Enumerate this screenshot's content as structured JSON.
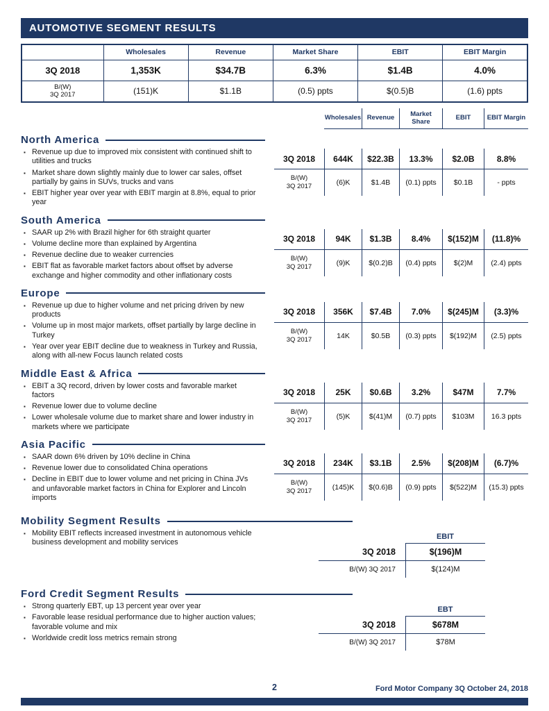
{
  "colors": {
    "navy": "#1f3864",
    "text": "#1a1a1a",
    "background": "#ffffff"
  },
  "header": {
    "title": "AUTOMOTIVE SEGMENT RESULTS"
  },
  "summary_table": {
    "columns": [
      "Wholesales",
      "Revenue",
      "Market Share",
      "EBIT",
      "EBIT Margin"
    ],
    "rows": [
      {
        "label": "3Q 2018",
        "values": [
          "1,353K",
          "$34.7B",
          "6.3%",
          "$1.4B",
          "4.0%"
        ]
      },
      {
        "label_lines": [
          "B/(W)",
          "3Q 2017"
        ],
        "values": [
          "(151)K",
          "$1.1B",
          "(0.5) ppts",
          "$(0.5)B",
          "(1.6) ppts"
        ]
      }
    ]
  },
  "region_columns": [
    "Wholesales",
    "Revenue",
    "Market Share",
    "EBIT",
    "EBIT Margin"
  ],
  "sections": [
    {
      "title": "North America",
      "bullets": [
        "Revenue up due to improved mix consistent with continued shift to utilities and trucks",
        "Market share down slightly mainly due to lower car sales, offset partially by gains in SUVs, trucks and vans",
        "EBIT higher year over year with EBIT margin at 8.8%, equal to prior year"
      ],
      "rows": [
        {
          "bold": true,
          "label_lines": [
            "3Q 2018"
          ],
          "values": [
            "644K",
            "$22.3B",
            "13.3%",
            "$2.0B",
            "8.8%"
          ]
        },
        {
          "bold": false,
          "label_lines": [
            "B/(W)",
            "3Q 2017"
          ],
          "values": [
            "(6)K",
            "$1.4B",
            "(0.1) ppts",
            "$0.1B",
            "- ppts"
          ]
        }
      ]
    },
    {
      "title": "South America",
      "bullets": [
        "SAAR up 2% with Brazil higher for 6th straight quarter",
        "Volume decline more than explained by Argentina",
        "Revenue decline due to weaker currencies",
        "EBIT flat as favorable market factors about offset by adverse exchange and higher commodity and other inflationary costs"
      ],
      "rows": [
        {
          "bold": true,
          "label_lines": [
            "3Q 2018"
          ],
          "values": [
            "94K",
            "$1.3B",
            "8.4%",
            "$(152)M",
            "(11.8)%"
          ]
        },
        {
          "bold": false,
          "label_lines": [
            "B/(W)",
            "3Q 2017"
          ],
          "values": [
            "(9)K",
            "$(0.2)B",
            "(0.4) ppts",
            "$(2)M",
            "(2.4) ppts"
          ]
        }
      ]
    },
    {
      "title": "Europe",
      "bullets": [
        "Revenue up due to higher volume and net pricing driven by new products",
        "Volume up in most major markets, offset partially by large decline in Turkey",
        "Year over year EBIT decline due to weakness in Turkey and Russia, along with all-new Focus launch related costs"
      ],
      "rows": [
        {
          "bold": true,
          "label_lines": [
            "3Q 2018"
          ],
          "values": [
            "356K",
            "$7.4B",
            "7.0%",
            "$(245)M",
            "(3.3)%"
          ]
        },
        {
          "bold": false,
          "label_lines": [
            "B/(W)",
            "3Q 2017"
          ],
          "values": [
            "14K",
            "$0.5B",
            "(0.3) ppts",
            "$(192)M",
            "(2.5) ppts"
          ]
        }
      ]
    },
    {
      "title": "Middle East & Africa",
      "bullets": [
        "EBIT a 3Q record, driven by lower costs and favorable market factors",
        "Revenue lower due to volume decline",
        "Lower wholesale volume due to market share and lower industry in markets where we participate"
      ],
      "rows": [
        {
          "bold": true,
          "label_lines": [
            "3Q 2018"
          ],
          "values": [
            "25K",
            "$0.6B",
            "3.2%",
            "$47M",
            "7.7%"
          ]
        },
        {
          "bold": false,
          "label_lines": [
            "B/(W)",
            "3Q 2017"
          ],
          "values": [
            "(5)K",
            "$(41)M",
            "(0.7) ppts",
            "$103M",
            "16.3 ppts"
          ]
        }
      ]
    },
    {
      "title": "Asia Pacific",
      "bullets": [
        "SAAR down 6% driven by 10% decline in China",
        "Revenue lower due to consolidated China operations",
        "Decline in EBIT due to lower volume and net pricing in China JVs and unfavorable market factors in China for Explorer and Lincoln imports"
      ],
      "rows": [
        {
          "bold": true,
          "label_lines": [
            "3Q 2018"
          ],
          "values": [
            "234K",
            "$3.1B",
            "2.5%",
            "$(208)M",
            "(6.7)%"
          ]
        },
        {
          "bold": false,
          "label_lines": [
            "B/(W)",
            "3Q 2017"
          ],
          "values": [
            "(145)K",
            "$(0.6)B",
            "(0.9) ppts",
            "$(522)M",
            "(15.3) ppts"
          ]
        }
      ]
    },
    {
      "title": "Mobility Segment Results",
      "type": "single",
      "value_header": "EBIT",
      "bullets": [
        "Mobility EBIT reflects increased investment in autonomous vehicle business development and mobility services"
      ],
      "rows": [
        {
          "bold": true,
          "label": "3Q 2018",
          "value": "$(196)M"
        },
        {
          "bold": false,
          "label": "B/(W) 3Q 2017",
          "value": "$(124)M"
        }
      ]
    },
    {
      "title": "Ford Credit Segment Results",
      "type": "single",
      "value_header": "EBT",
      "bullets": [
        "Strong quarterly EBT, up 13 percent year over year",
        "Favorable lease residual performance due to higher auction values; favorable volume and mix",
        "Worldwide credit loss metrics remain strong"
      ],
      "rows": [
        {
          "bold": true,
          "label": "3Q 2018",
          "value": "$678M"
        },
        {
          "bold": false,
          "label": "B/(W) 3Q 2017",
          "value": "$78M"
        }
      ]
    }
  ],
  "footer": {
    "page_number": "2",
    "right_text": "Ford Motor Company 3Q October 24, 2018"
  }
}
